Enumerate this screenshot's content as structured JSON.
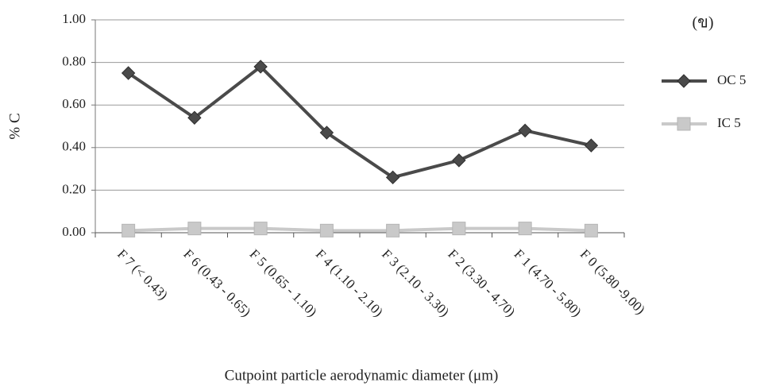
{
  "chart_data": {
    "type": "line",
    "title": "(ข)",
    "x_label": "Cutpoint particle aerodynamic diameter (μm)",
    "y_label": "% C",
    "categories": [
      "F 7 (< 0.43)",
      "F 6 (0.43 - 0.65)",
      "F 5 (0.65 - 1.10)",
      "F 4 (1.10 - 2.10)",
      "F 3 (2.10 - 3.30)",
      "F 2 (3.30 - 4.70)",
      "F 1 (4.70 - 5.80)",
      "F 0 (5.80 -9.00)"
    ],
    "series": [
      {
        "name": "OC 5",
        "color": "#4a4a4a",
        "marker": "diamond",
        "values": [
          0.75,
          0.54,
          0.78,
          0.47,
          0.26,
          0.34,
          0.48,
          0.41
        ]
      },
      {
        "name": "IC 5",
        "color": "#c9c9c9",
        "marker": "square",
        "values": [
          0.01,
          0.02,
          0.02,
          0.01,
          0.01,
          0.02,
          0.02,
          0.01
        ]
      }
    ],
    "ylim": [
      0,
      1
    ],
    "yticks": [
      {
        "value": 0,
        "label": "0.00"
      },
      {
        "value": 0.2,
        "label": "0.20"
      },
      {
        "value": 0.4,
        "label": "0.40"
      },
      {
        "value": 0.6,
        "label": "0.60"
      },
      {
        "value": 0.8,
        "label": "0.80"
      },
      {
        "value": 1,
        "label": "1.00"
      }
    ],
    "grid": true,
    "legend": "right"
  }
}
